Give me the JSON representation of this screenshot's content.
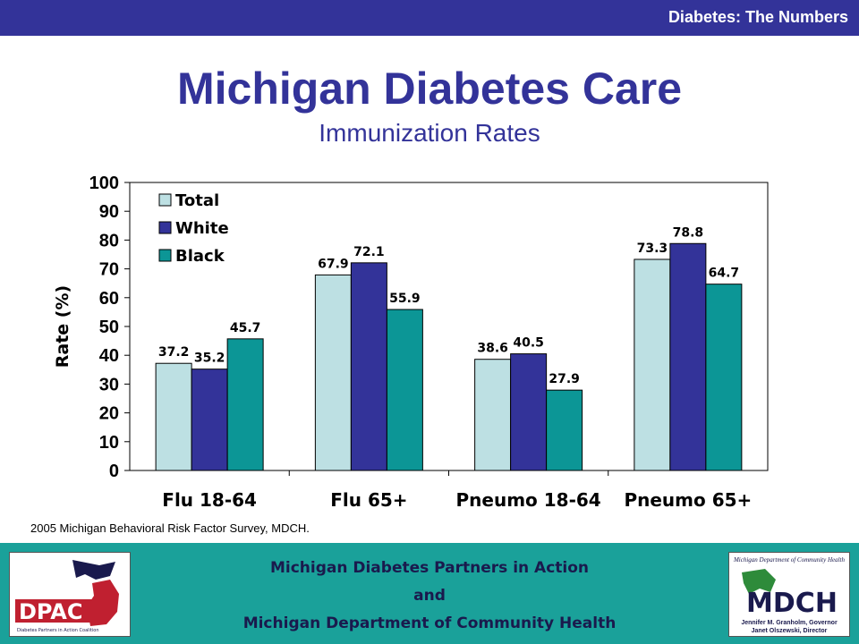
{
  "header": {
    "section_label": "Diabetes: The Numbers"
  },
  "title": "Michigan Diabetes Care",
  "subtitle": "Immunization Rates",
  "colors": {
    "header_bar": "#333399",
    "title": "#333399",
    "footer": "#1aa19a",
    "total": "#bde0e3",
    "white": "#333399",
    "black": "#0c9696"
  },
  "chart_data": {
    "type": "bar",
    "categories": [
      "Flu 18-64",
      "Flu 65+",
      "Pneumo 18-64",
      "Pneumo 65+"
    ],
    "series": [
      {
        "name": "Total",
        "values": [
          37.2,
          67.9,
          38.6,
          73.3
        ],
        "color": "#bde0e3"
      },
      {
        "name": "White",
        "values": [
          35.2,
          72.1,
          40.5,
          78.8
        ],
        "color": "#333399"
      },
      {
        "name": "Black",
        "values": [
          45.7,
          55.9,
          27.9,
          64.7
        ],
        "color": "#0c9696"
      }
    ],
    "data_labels": [
      [
        "37.2",
        "67.9",
        "38.6",
        "73.3"
      ],
      [
        "35.2",
        "72.1",
        "40.5",
        "78.8"
      ],
      [
        "45.7",
        "55.9",
        "27.9",
        "64.7"
      ]
    ],
    "ylabel": "Rate (%)",
    "xlabel": "",
    "ylim": [
      0,
      100
    ],
    "yticks": [
      "0",
      "10",
      "20",
      "30",
      "40",
      "50",
      "60",
      "70",
      "80",
      "90",
      "100"
    ],
    "grid": false,
    "legend": "top-left"
  },
  "source": "2005 Michigan Behavioral Risk Factor Survey, MDCH.",
  "footer": {
    "line1": "Michigan Diabetes Partners in Action",
    "line2": "and",
    "line3": "Michigan Department of Community Health",
    "left_logo": {
      "text": "DPAC",
      "tagline": "Diabetes Partners in Action Coalition"
    },
    "right_logo": {
      "header": "Michigan Department of Community Health",
      "text": "MDCH",
      "line1": "Jennifer M. Granholm, Governor",
      "line2": "Janet Olszewski, Director"
    }
  }
}
